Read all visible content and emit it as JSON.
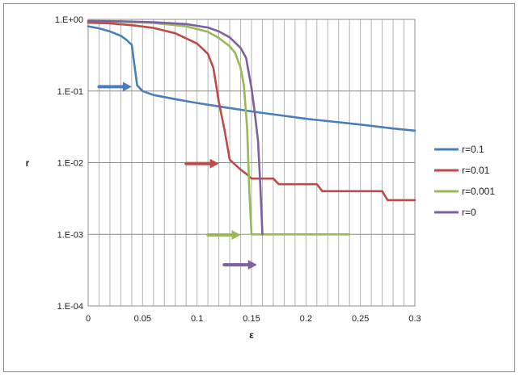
{
  "chart_data": {
    "type": "line",
    "title": "",
    "xlabel": "ε",
    "ylabel": "r",
    "xlim": [
      0,
      0.3
    ],
    "ylim": [
      0.0001,
      1
    ],
    "yscale": "log",
    "grid": true,
    "legend_position": "right",
    "x_ticks": [
      0,
      0.05,
      0.1,
      0.15,
      0.2,
      0.25,
      0.3
    ],
    "x_tick_labels": [
      "0",
      "0.05",
      "0.1",
      "0.15",
      "0.2",
      "0.25",
      "0.3"
    ],
    "y_ticks": [
      1,
      0.1,
      0.01,
      0.001,
      0.0001
    ],
    "y_tick_labels": [
      "1.E+00",
      "1.E-01",
      "1.E-02",
      "1.E-03",
      "1.E-04"
    ],
    "series": [
      {
        "name": "r=0.1",
        "color": "#4a7ebb",
        "x": [
          0,
          0.01,
          0.02,
          0.03,
          0.035,
          0.04,
          0.045,
          0.05,
          0.06,
          0.08,
          0.1,
          0.12,
          0.15,
          0.18,
          0.2,
          0.22,
          0.25,
          0.28,
          0.3
        ],
        "y": [
          0.8,
          0.75,
          0.68,
          0.59,
          0.52,
          0.44,
          0.12,
          0.1,
          0.088,
          0.077,
          0.068,
          0.061,
          0.052,
          0.045,
          0.041,
          0.038,
          0.034,
          0.03,
          0.028
        ]
      },
      {
        "name": "r=0.01",
        "color": "#be4b48",
        "x": [
          0,
          0.02,
          0.04,
          0.06,
          0.08,
          0.1,
          0.11,
          0.115,
          0.12,
          0.125,
          0.13,
          0.14,
          0.145,
          0.15,
          0.16,
          0.17,
          0.175,
          0.18,
          0.21,
          0.215,
          0.22,
          0.27,
          0.275,
          0.3
        ],
        "y": [
          0.9,
          0.88,
          0.83,
          0.76,
          0.64,
          0.46,
          0.33,
          0.21,
          0.07,
          0.03,
          0.011,
          0.008,
          0.007,
          0.006,
          0.006,
          0.006,
          0.005,
          0.005,
          0.005,
          0.004,
          0.004,
          0.004,
          0.003,
          0.003
        ]
      },
      {
        "name": "r=0.001",
        "color": "#98b954",
        "x": [
          0,
          0.03,
          0.06,
          0.09,
          0.11,
          0.12,
          0.13,
          0.135,
          0.14,
          0.143,
          0.146,
          0.148,
          0.15,
          0.16,
          0.2,
          0.24
        ],
        "y": [
          0.95,
          0.93,
          0.89,
          0.8,
          0.67,
          0.55,
          0.42,
          0.34,
          0.21,
          0.12,
          0.03,
          0.004,
          0.001,
          0.001,
          0.001,
          0.001
        ]
      },
      {
        "name": "r=0",
        "color": "#7d60a0",
        "x": [
          0,
          0.03,
          0.06,
          0.09,
          0.11,
          0.12,
          0.13,
          0.14,
          0.145,
          0.15,
          0.153,
          0.156,
          0.158,
          0.16
        ],
        "y": [
          0.95,
          0.94,
          0.91,
          0.86,
          0.77,
          0.68,
          0.56,
          0.4,
          0.29,
          0.11,
          0.05,
          0.02,
          0.005,
          0.001
        ]
      }
    ],
    "arrows": [
      {
        "series": "r=0.1",
        "x_start": 0.01,
        "x_end": 0.04,
        "y": 0.115
      },
      {
        "series": "r=0.01",
        "x_start": 0.09,
        "x_end": 0.12,
        "y": 0.0097
      },
      {
        "series": "r=0.001",
        "x_start": 0.11,
        "x_end": 0.14,
        "y": 0.00098
      },
      {
        "series": "r=0",
        "x_start": 0.125,
        "x_end": 0.155,
        "y": 0.000375
      }
    ]
  }
}
